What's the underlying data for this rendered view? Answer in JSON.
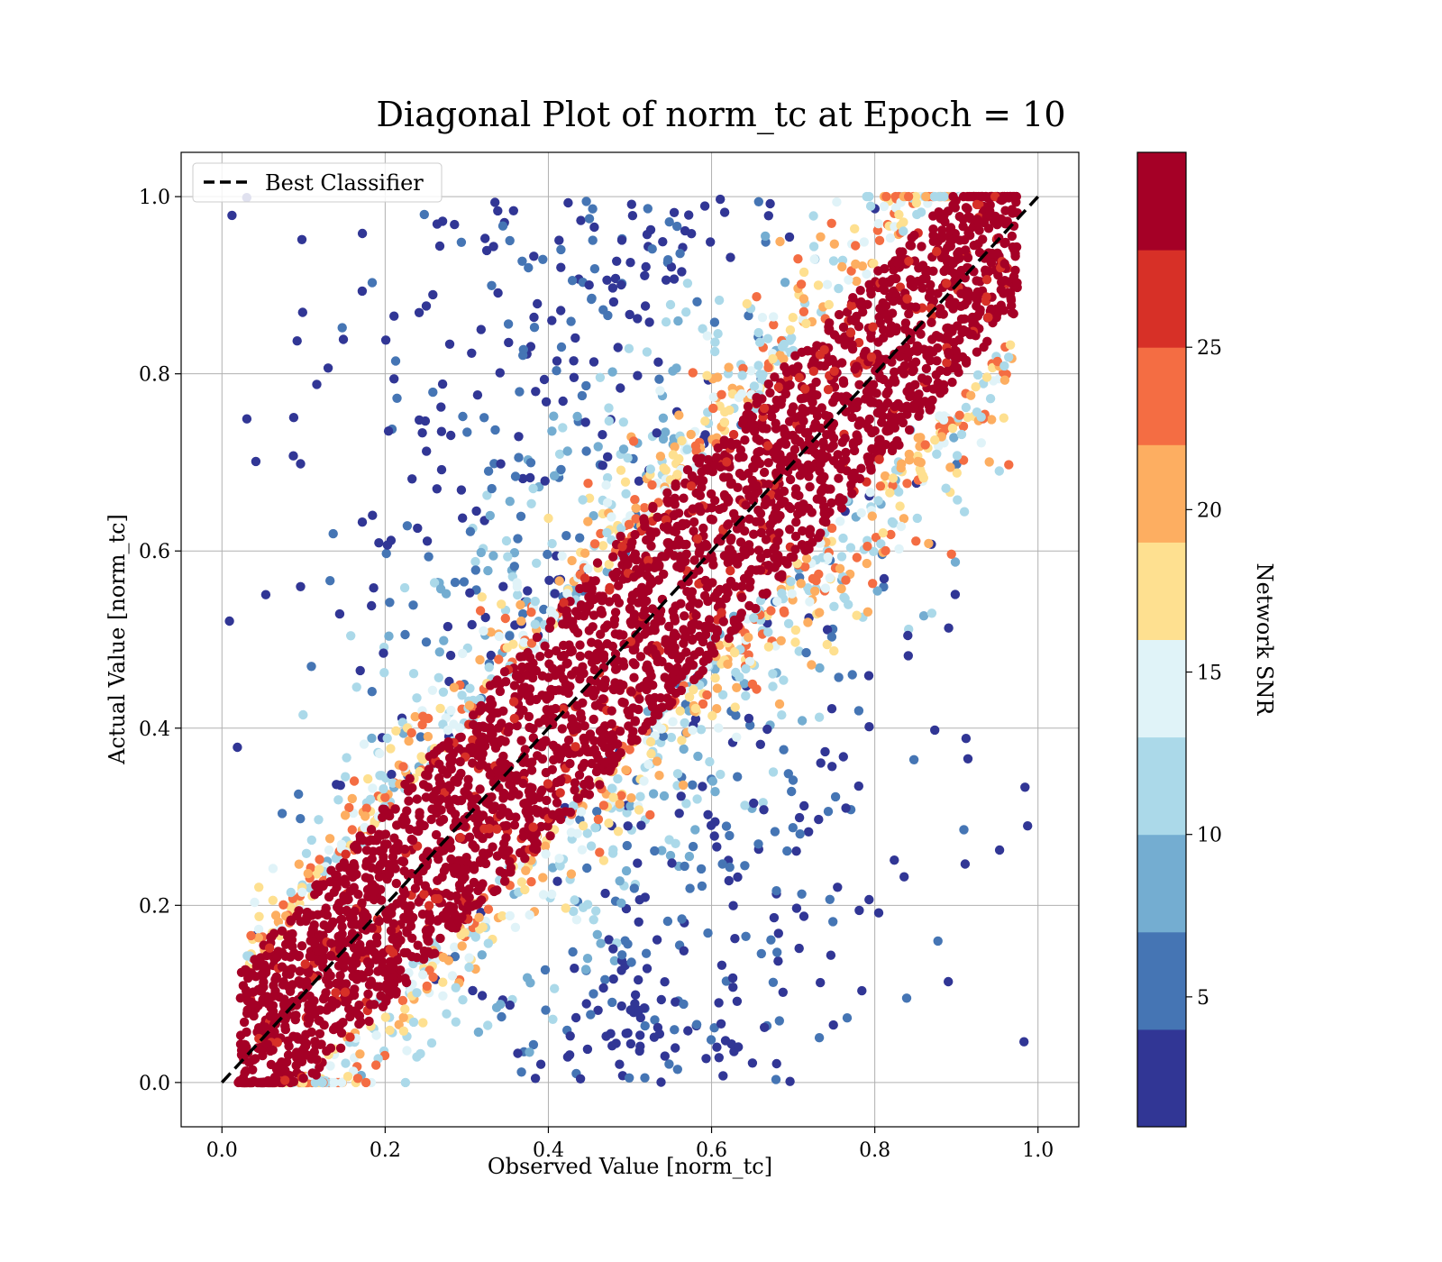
{
  "chart_data": {
    "type": "scatter",
    "title": "Diagonal Plot of norm_tc at Epoch = 10",
    "xlabel": "Observed Value [norm_tc]",
    "ylabel": "Actual Value [norm_tc]",
    "xlim": [
      -0.05,
      1.05
    ],
    "ylim": [
      -0.05,
      1.05
    ],
    "xticks": [
      "0.0",
      "0.2",
      "0.4",
      "0.6",
      "0.8",
      "1.0"
    ],
    "yticks": [
      "0.0",
      "0.2",
      "0.4",
      "0.6",
      "0.8",
      "1.0"
    ],
    "grid": true,
    "legend": {
      "position": "top-left",
      "entries": [
        {
          "label": "Best Classifier",
          "style": "dashed",
          "color": "#000000"
        }
      ]
    },
    "reference_line": {
      "x": [
        0.0,
        1.0
      ],
      "y": [
        0.0,
        1.0
      ],
      "style": "dashed",
      "color": "#000000"
    },
    "colorbar": {
      "label": "Network SNR",
      "range": [
        1,
        31
      ],
      "ticks": [
        "5",
        "10",
        "15",
        "20",
        "25"
      ],
      "tick_values": [
        5,
        10,
        15,
        20,
        25
      ],
      "colors": [
        "#313695",
        "#4575b4",
        "#74add1",
        "#abd9e9",
        "#e0f3f8",
        "#fee090",
        "#fdae61",
        "#f46d43",
        "#d73027",
        "#a50026"
      ]
    },
    "points_note": "dense scatter of ~10^5 points around the y = x diagonal; high-SNR points (dark red) form a tight band of width ~0.3, low-SNR points (blue) spread into the upper-left and lower-right regions"
  }
}
